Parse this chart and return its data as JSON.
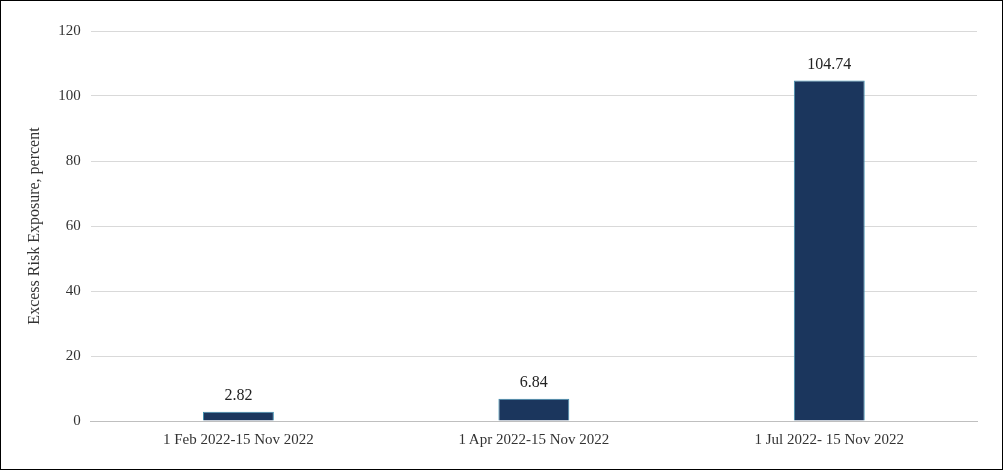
{
  "chart_data": {
    "type": "bar",
    "ylabel": "Excess Risk Exposure, percent",
    "categories": [
      "1 Feb 2022-15 Nov 2022",
      "1 Apr 2022-15 Nov 2022",
      "1 Jul 2022- 15 Nov 2022"
    ],
    "values": [
      2.82,
      6.84,
      104.74
    ],
    "color": "#1b365d",
    "ylim": [
      0,
      120
    ],
    "yticks": [
      0,
      20,
      40,
      60,
      80,
      100,
      120
    ],
    "grid": "y",
    "data_labels": true,
    "legend": false
  }
}
